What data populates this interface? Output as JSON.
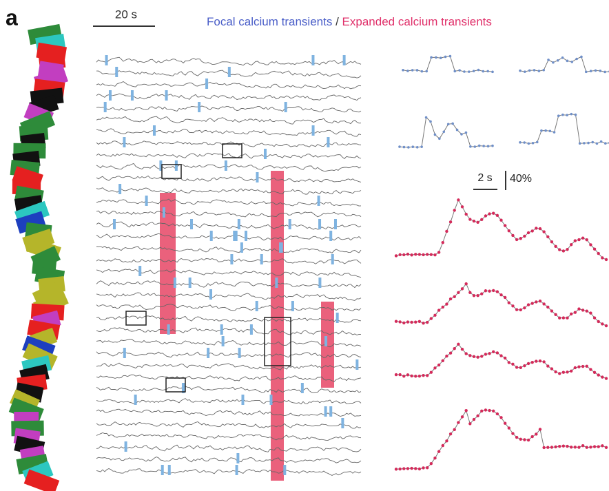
{
  "panel_label": "a",
  "time_scale_bar": "20 s",
  "legend": {
    "focal": "Focal calcium transients",
    "separator": "/",
    "expanded": "Expanded calcium transients"
  },
  "inset_scale": {
    "time": "2 s",
    "amplitude": "40%"
  }
}
